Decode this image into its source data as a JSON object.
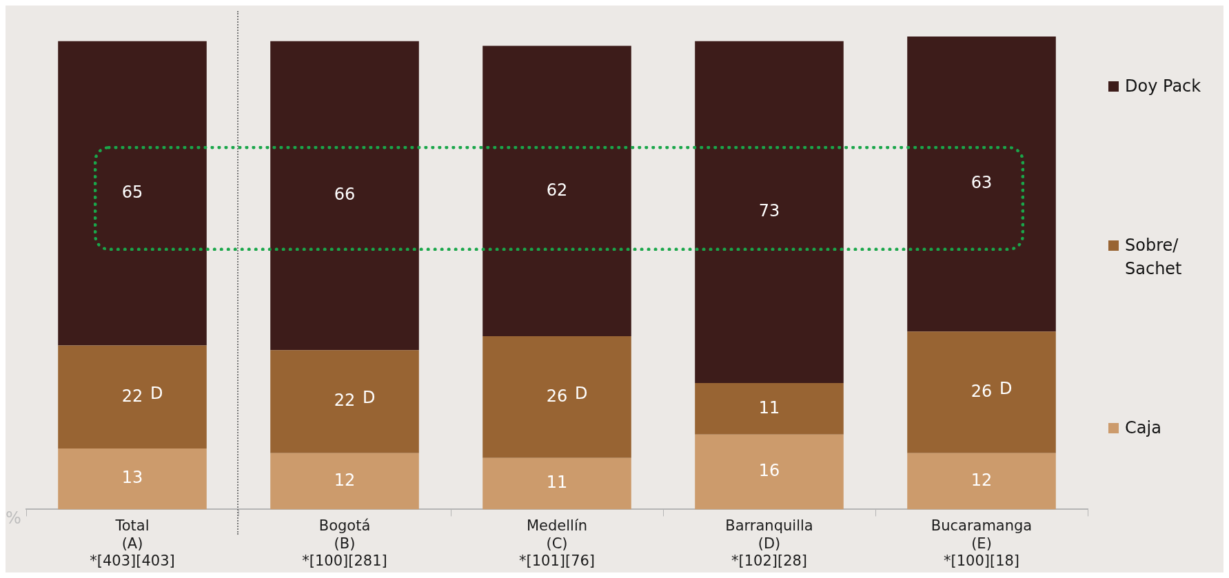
{
  "chart_data": {
    "type": "bar",
    "stacked": true,
    "categories": [
      "Total\n(A)\n*[403][403]",
      "Bogotá\n(B)\n*[100][281]",
      "Medellín\n(C)\n*[101][76]",
      "Barranquilla\n(D)\n*[102][28]",
      "Bucaramanga\n(E)\n*[100][18]"
    ],
    "series": [
      {
        "name": "Caja",
        "color": "#cc9b6c",
        "values": [
          13,
          12,
          11,
          16,
          12
        ]
      },
      {
        "name": "Sobre/ Sachet",
        "color": "#986433",
        "values": [
          22,
          22,
          26,
          11,
          26
        ]
      },
      {
        "name": "Doy Pack",
        "color": "#3d1c1a",
        "values": [
          65,
          66,
          62,
          73,
          63
        ]
      }
    ],
    "data_labels": true,
    "legend": "right",
    "grid": false,
    "annotations": [
      "D",
      "D",
      "D",
      "D",
      "%"
    ]
  }
}
